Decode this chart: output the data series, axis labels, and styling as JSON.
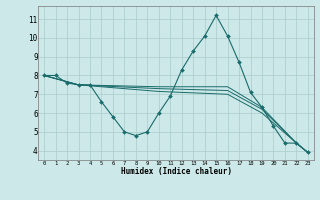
{
  "background_color": "#cce8e8",
  "grid_color": "#aacccc",
  "line_color": "#1a6b6b",
  "marker_color": "#1a6b6b",
  "xlabel": "Humidex (Indice chaleur)",
  "xlim": [
    -0.5,
    23.5
  ],
  "ylim": [
    3.5,
    11.7
  ],
  "yticks": [
    4,
    5,
    6,
    7,
    8,
    9,
    10,
    11
  ],
  "xticks": [
    0,
    1,
    2,
    3,
    4,
    5,
    6,
    7,
    8,
    9,
    10,
    11,
    12,
    13,
    14,
    15,
    16,
    17,
    18,
    19,
    20,
    21,
    22,
    23
  ],
  "series": [
    {
      "x": [
        0,
        1,
        2,
        3,
        4,
        5,
        6,
        7,
        8,
        9,
        10,
        11,
        12,
        13,
        14,
        15,
        16,
        17,
        18,
        19,
        20,
        21,
        22,
        23
      ],
      "y": [
        8.0,
        8.0,
        7.6,
        7.5,
        7.5,
        6.6,
        5.8,
        5.0,
        4.8,
        5.0,
        6.0,
        6.9,
        8.3,
        9.3,
        10.1,
        11.2,
        10.1,
        8.7,
        7.1,
        6.3,
        5.3,
        4.4,
        4.4,
        3.9
      ],
      "has_markers": true
    },
    {
      "x": [
        0,
        3,
        10,
        16,
        19,
        22,
        23
      ],
      "y": [
        8.0,
        7.5,
        7.4,
        7.4,
        6.3,
        4.4,
        3.9
      ],
      "has_markers": false
    },
    {
      "x": [
        0,
        3,
        10,
        16,
        19,
        22,
        23
      ],
      "y": [
        8.0,
        7.5,
        7.3,
        7.2,
        6.2,
        4.4,
        3.9
      ],
      "has_markers": false
    },
    {
      "x": [
        0,
        3,
        10,
        16,
        19,
        22,
        23
      ],
      "y": [
        8.0,
        7.5,
        7.15,
        7.0,
        6.0,
        4.4,
        3.9
      ],
      "has_markers": false
    }
  ]
}
